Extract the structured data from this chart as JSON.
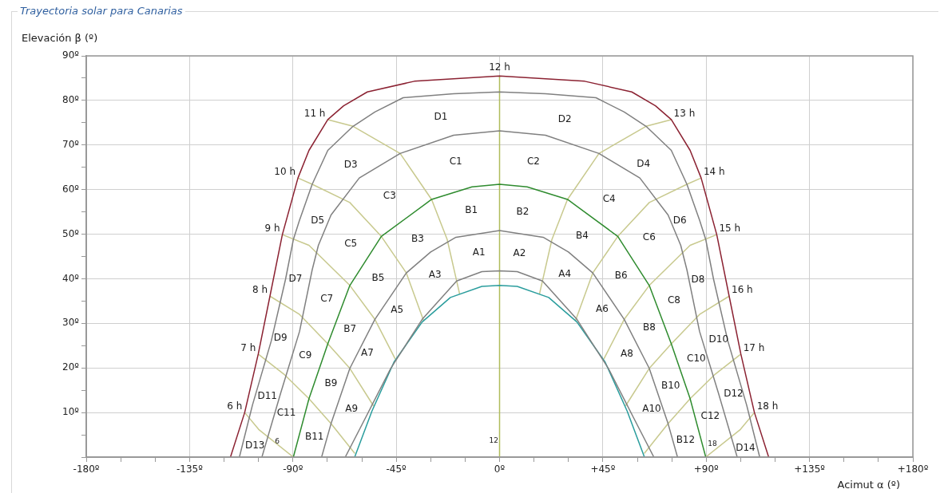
{
  "chart_data": {
    "type": "line",
    "title": "Trayectoria solar para Canarias",
    "xlabel": "Acimut α (º)",
    "ylabel": "Elevación β (º)",
    "xlim": [
      -180,
      180
    ],
    "xticks": [
      {
        "value": -180,
        "label": "-180º"
      },
      {
        "value": -165,
        "label": null
      },
      {
        "value": -150,
        "label": null
      },
      {
        "value": -135,
        "label": "-135º"
      },
      {
        "value": -120,
        "label": null
      },
      {
        "value": -105,
        "label": null
      },
      {
        "value": -90,
        "label": "-90º"
      },
      {
        "value": -75,
        "label": null
      },
      {
        "value": -60,
        "label": null
      },
      {
        "value": -45,
        "label": "-45º"
      },
      {
        "value": -30,
        "label": null
      },
      {
        "value": -15,
        "label": null
      },
      {
        "value": 0,
        "label": "0º"
      },
      {
        "value": 15,
        "label": null
      },
      {
        "value": 30,
        "label": null
      },
      {
        "value": 45,
        "label": "+45º"
      },
      {
        "value": 60,
        "label": null
      },
      {
        "value": 75,
        "label": null
      },
      {
        "value": 90,
        "label": "+90º"
      },
      {
        "value": 105,
        "label": null
      },
      {
        "value": 120,
        "label": null
      },
      {
        "value": 135,
        "label": "+135º"
      },
      {
        "value": 150,
        "label": null
      },
      {
        "value": 165,
        "label": null
      },
      {
        "value": 180,
        "label": "+180º"
      }
    ],
    "ylim": [
      0,
      90
    ],
    "yticks": [
      {
        "value": 0,
        "label": null
      },
      {
        "value": 5,
        "label": null
      },
      {
        "value": 10,
        "label": "10º"
      },
      {
        "value": 15,
        "label": null
      },
      {
        "value": 20,
        "label": "20º"
      },
      {
        "value": 25,
        "label": null
      },
      {
        "value": 30,
        "label": "30º"
      },
      {
        "value": 35,
        "label": null
      },
      {
        "value": 40,
        "label": "40º"
      },
      {
        "value": 45,
        "label": null
      },
      {
        "value": 50,
        "label": "50º"
      },
      {
        "value": 55,
        "label": null
      },
      {
        "value": 60,
        "label": "60º"
      },
      {
        "value": 65,
        "label": null
      },
      {
        "value": 70,
        "label": "70º"
      },
      {
        "value": 75,
        "label": null
      },
      {
        "value": 80,
        "label": "80º"
      },
      {
        "value": 85,
        "label": null
      },
      {
        "value": 90,
        "label": "90º"
      }
    ],
    "grid": true,
    "legend": false,
    "marker": "none",
    "series": [
      {
        "color": "#8b2232",
        "x": [
          -117.2,
          -111,
          -105.1,
          -100,
          -94.6,
          -87.8,
          -83,
          -74.8,
          -67.9,
          -57.6,
          -37.1,
          0,
          37.1,
          57.6,
          67.9,
          74.8,
          83,
          87.8,
          94.6,
          100,
          105.1,
          111,
          117.2
        ],
        "values": [
          0,
          10,
          23.1,
          36.1,
          49.9,
          62.6,
          68.8,
          75.7,
          78.8,
          81.9,
          84.3,
          85.5,
          84.3,
          81.9,
          78.8,
          75.7,
          68.8,
          62.6,
          49.9,
          36.1,
          23.1,
          10,
          0
        ]
      },
      {
        "color": "#808080",
        "x": [
          -113.3,
          -107.6,
          -99.4,
          -93.2,
          -89.8,
          -87.2,
          -81.6,
          -74.8,
          -63.8,
          -54.3,
          -42,
          -20,
          0,
          20,
          42,
          54.3,
          63.8,
          74.8,
          81.6,
          87.2,
          89.8,
          93.2,
          99.4,
          107.6,
          113.3
        ],
        "values": [
          0,
          11.7,
          26.1,
          39.9,
          48.8,
          53,
          61.2,
          68.8,
          74.2,
          77.4,
          80.6,
          81.5,
          81.9,
          81.5,
          80.6,
          77.4,
          74.2,
          68.8,
          61.2,
          53,
          48.8,
          39.9,
          26.1,
          11.7,
          0
        ]
      },
      {
        "color": "#808080",
        "x": [
          -103.5,
          -95.3,
          -87.1,
          -81.6,
          -78.9,
          -73.4,
          -61.1,
          -43.3,
          -20,
          0,
          20,
          43.3,
          61.1,
          73.4,
          78.9,
          81.6,
          87.1,
          95.3,
          103.5
        ],
        "values": [
          0,
          14.4,
          28.2,
          42,
          47.5,
          54.3,
          62.6,
          68.1,
          72.2,
          73.2,
          72.2,
          68.1,
          62.6,
          54.3,
          47.5,
          42,
          28.2,
          14.4,
          0
        ]
      },
      {
        "color": "#2e8b2e",
        "x": [
          -89.8,
          -83,
          -74.8,
          -65.2,
          -51.5,
          -29.6,
          -12,
          0,
          12,
          29.6,
          51.5,
          65.2,
          74.8,
          83,
          89.8
        ],
        "values": [
          0,
          13.1,
          25.4,
          38.5,
          49.5,
          57.8,
          60.6,
          61.2,
          60.6,
          57.8,
          49.5,
          38.5,
          25.4,
          13.1,
          0
        ]
      },
      {
        "color": "#808080",
        "x": [
          -77.5,
          -73.4,
          -65.2,
          -54.3,
          -40.6,
          -30,
          -19,
          0,
          19,
          30,
          40.6,
          54.3,
          65.2,
          73.4,
          77.5
        ],
        "values": [
          0,
          7.5,
          19.9,
          30.9,
          41.3,
          46,
          49.3,
          50.8,
          49.3,
          46,
          41.3,
          30.9,
          19.9,
          7.5,
          0
        ]
      },
      {
        "color": "#808080",
        "x": [
          -67.2,
          -58.3,
          -47.4,
          -33.7,
          -18.7,
          -7.7,
          0,
          7.7,
          18.7,
          33.7,
          47.4,
          58.3,
          67.2
        ],
        "values": [
          0,
          8.9,
          19.9,
          30.9,
          39.5,
          41.6,
          41.8,
          41.6,
          39.5,
          30.9,
          19.9,
          8.9,
          0
        ]
      },
      {
        "color": "#2a9d9d",
        "x": [
          -63.1,
          -55.6,
          -46,
          -33.7,
          -21.4,
          -7.7,
          0,
          7.7,
          21.4,
          33.7,
          46,
          55.6,
          63.1
        ],
        "values": [
          0,
          10.3,
          21.3,
          30.3,
          35.8,
          38.3,
          38.5,
          38.3,
          35.8,
          30.3,
          21.3,
          10.3,
          0
        ]
      },
      {
        "name": "6 h",
        "color": "#c8c98e",
        "x": [
          -111,
          -104.9,
          -89.8
        ],
        "values": [
          10,
          6.2,
          0
        ]
      },
      {
        "name": "7 h",
        "color": "#c8c98e",
        "x": [
          -105.1,
          -93.9,
          -83,
          -73.4,
          -63
        ],
        "values": [
          23.1,
          18.6,
          13.1,
          7.5,
          0.8
        ]
      },
      {
        "name": "8 h",
        "color": "#c8c98e",
        "x": [
          -100,
          -87.1,
          -74.8,
          -65.2,
          -54.9
        ],
        "values": [
          36.1,
          32,
          25.4,
          19.9,
          11.5
        ]
      },
      {
        "name": "9 h",
        "color": "#c8c98e",
        "x": [
          -94.6,
          -83,
          -65.2,
          -54.3,
          -45.4
        ],
        "values": [
          49.9,
          47.5,
          38.5,
          30.9,
          22
        ]
      },
      {
        "name": "10 h",
        "color": "#c8c98e",
        "x": [
          -87.8,
          -81.6,
          -65.2,
          -51.5,
          -40.6,
          -33
        ],
        "values": [
          62.6,
          61.2,
          57.1,
          49.5,
          41.3,
          30.5
        ]
      },
      {
        "name": "11 h",
        "color": "#c8c98e",
        "x": [
          -74.8,
          -63.8,
          -43.3,
          -29.6,
          -22.8,
          -17.4
        ],
        "values": [
          75.7,
          74.2,
          68.1,
          57.8,
          48.8,
          36.6
        ]
      },
      {
        "name": "12 h",
        "color": "#b0bc5c",
        "x": [
          0,
          0
        ],
        "values": [
          85.5,
          0
        ]
      },
      {
        "name": "13 h",
        "color": "#c8c98e",
        "x": [
          74.8,
          63.8,
          43.3,
          29.6,
          22.8,
          17.4
        ],
        "values": [
          75.7,
          74.2,
          68.1,
          57.8,
          48.8,
          36.6
        ]
      },
      {
        "name": "14 h",
        "color": "#c8c98e",
        "x": [
          87.8,
          81.6,
          65.2,
          51.5,
          40.6,
          33
        ],
        "values": [
          62.6,
          61.2,
          57.1,
          49.5,
          41.3,
          30.5
        ]
      },
      {
        "name": "15 h",
        "color": "#c8c98e",
        "x": [
          94.6,
          83,
          65.2,
          54.3,
          45.4
        ],
        "values": [
          49.9,
          47.5,
          38.5,
          30.9,
          22
        ]
      },
      {
        "name": "16 h",
        "color": "#c8c98e",
        "x": [
          100,
          87.1,
          74.8,
          65.2,
          54.9
        ],
        "values": [
          36.1,
          32,
          25.4,
          19.9,
          11.5
        ]
      },
      {
        "name": "17 h",
        "color": "#c8c98e",
        "x": [
          105.1,
          93.9,
          83,
          73.4,
          63
        ],
        "values": [
          23.1,
          18.6,
          13.1,
          7.5,
          0.8
        ]
      },
      {
        "name": "18 h",
        "color": "#c8c98e",
        "x": [
          111,
          104.9,
          89.8
        ],
        "values": [
          10,
          6.2,
          0
        ]
      }
    ],
    "annotations": [
      "6",
      "12",
      "18",
      "D1",
      "D2",
      "D3",
      "D4",
      "C1",
      "C2",
      "C3",
      "C4",
      "B1",
      "B2",
      "D5",
      "D6",
      "C5",
      "C6",
      "B3",
      "B4",
      "A1",
      "A2",
      "A3",
      "A4",
      "B5",
      "B6",
      "D7",
      "D8",
      "C7",
      "C8",
      "A5",
      "A6",
      "B7",
      "B8",
      "D9",
      "D10",
      "A7",
      "A8",
      "C9",
      "C10",
      "B9",
      "B10",
      "D11",
      "D12",
      "A9",
      "A10",
      "C11",
      "C12",
      "B11",
      "B12",
      "D13",
      "D14"
    ]
  }
}
